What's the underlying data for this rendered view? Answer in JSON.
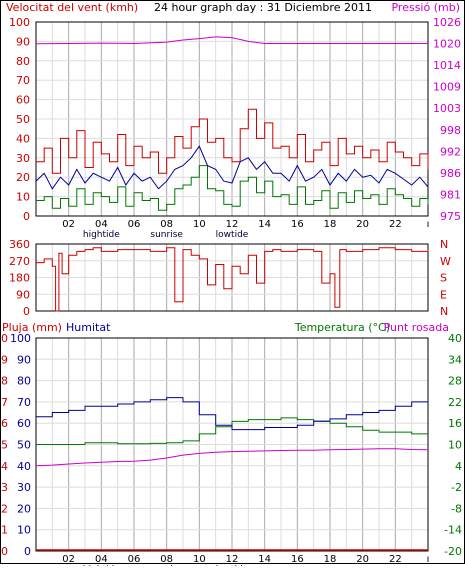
{
  "colors": {
    "wind_avg": "#000099",
    "wind_gust": "#cc0000",
    "wind_dir": "#cc0000",
    "pressure": "#cc00cc",
    "rain": "#cc0000",
    "humidity": "#000099",
    "temperature": "#007700",
    "dewpoint": "#cc00cc",
    "grid_major": "#aaaaaa",
    "grid_minor": "#dddddd"
  },
  "chart_data": [
    {
      "type": "line",
      "title": "24 hour graph day : 31 Diciembre 2011",
      "left_axis_label": "Velocitat del vent (kmh)",
      "right_axis_label": "Pressió (mb)",
      "x_ticks": [
        "02",
        "04",
        "06",
        "08",
        "10",
        "12",
        "14",
        "16",
        "18",
        "20",
        "22"
      ],
      "x_markers": [
        "hightide",
        "sunrise",
        "lowtide"
      ],
      "ylim_left": [
        0,
        100
      ],
      "ylim_right": [
        975,
        1031
      ],
      "left_ticks": [
        "100",
        "90",
        "80",
        "70",
        "60",
        "50",
        "40",
        "30",
        "20",
        "10",
        "0"
      ],
      "right_ticks": [
        "1026",
        "1020",
        "1014",
        "1009",
        "1003",
        "998",
        "992",
        "986",
        "981",
        "975"
      ],
      "series": [
        {
          "key": "gust",
          "x": [
            0,
            0.5,
            1,
            1.5,
            2,
            2.5,
            3,
            3.5,
            4,
            4.5,
            5,
            5.5,
            6,
            6.5,
            7,
            7.5,
            8,
            8.5,
            9,
            9.5,
            10,
            10.5,
            11,
            11.5,
            12,
            12.5,
            13,
            13.5,
            14,
            14.5,
            15,
            15.5,
            16,
            16.5,
            17,
            17.5,
            18,
            18.5,
            19,
            19.5,
            20,
            20.5,
            21,
            21.5,
            22,
            22.5,
            23,
            23.5,
            24
          ],
          "values": [
            28,
            35,
            22,
            40,
            30,
            44,
            25,
            38,
            32,
            28,
            42,
            26,
            36,
            30,
            33,
            22,
            30,
            41,
            35,
            46,
            50,
            38,
            40,
            30,
            28,
            45,
            55,
            40,
            48,
            35,
            36,
            30,
            42,
            28,
            34,
            38,
            26,
            40,
            32,
            36,
            30,
            34,
            28,
            38,
            33,
            30,
            26,
            32,
            24
          ]
        },
        {
          "key": "avg",
          "x": [
            0,
            0.5,
            1,
            1.5,
            2,
            2.5,
            3,
            3.5,
            4,
            4.5,
            5,
            5.5,
            6,
            6.5,
            7,
            7.5,
            8,
            8.5,
            9,
            9.5,
            10,
            10.5,
            11,
            11.5,
            12,
            12.5,
            13,
            13.5,
            14,
            14.5,
            15,
            15.5,
            16,
            16.5,
            17,
            17.5,
            18,
            18.5,
            19,
            19.5,
            20,
            20.5,
            21,
            21.5,
            22,
            22.5,
            23,
            23.5,
            24
          ],
          "values": [
            18,
            22,
            14,
            20,
            16,
            24,
            17,
            22,
            20,
            18,
            25,
            16,
            22,
            18,
            20,
            14,
            18,
            24,
            26,
            30,
            36,
            26,
            24,
            18,
            17,
            28,
            30,
            24,
            28,
            22,
            22,
            18,
            26,
            18,
            20,
            24,
            16,
            22,
            18,
            24,
            20,
            21,
            17,
            24,
            22,
            19,
            16,
            20,
            15
          ]
        },
        {
          "key": "low",
          "x": [
            0,
            0.5,
            1,
            1.5,
            2,
            2.5,
            3,
            3.5,
            4,
            4.5,
            5,
            5.5,
            6,
            6.5,
            7,
            7.5,
            8,
            8.5,
            9,
            9.5,
            10,
            10.5,
            11,
            11.5,
            12,
            12.5,
            13,
            13.5,
            14,
            14.5,
            15,
            15.5,
            16,
            16.5,
            17,
            17.5,
            18,
            18.5,
            19,
            19.5,
            20,
            20.5,
            21,
            21.5,
            22,
            22.5,
            23,
            23.5,
            24
          ],
          "values": [
            8,
            10,
            4,
            9,
            5,
            14,
            6,
            12,
            10,
            7,
            15,
            5,
            12,
            8,
            9,
            3,
            6,
            14,
            16,
            20,
            26,
            14,
            13,
            6,
            5,
            18,
            20,
            12,
            18,
            10,
            11,
            6,
            15,
            6,
            8,
            13,
            4,
            12,
            7,
            13,
            9,
            11,
            6,
            14,
            11,
            9,
            5,
            9,
            6
          ]
        },
        {
          "key": "pressure",
          "x": [
            0,
            2,
            4,
            6,
            8,
            9,
            10,
            11,
            12,
            13,
            14,
            16,
            18,
            20,
            22,
            24
          ],
          "values": [
            1024.7,
            1024.8,
            1024.9,
            1024.8,
            1025.2,
            1025.8,
            1026.2,
            1026.7,
            1026.5,
            1025.4,
            1024.8,
            1024.8,
            1024.8,
            1024.8,
            1024.8,
            1024.8
          ]
        }
      ]
    },
    {
      "type": "line",
      "title": "",
      "ylim": [
        0,
        360
      ],
      "left_ticks": [
        "360",
        "270",
        "180",
        "90",
        "0"
      ],
      "right_ticks": [
        "N",
        "W",
        "S",
        "E",
        "N"
      ],
      "series": [
        {
          "key": "direction",
          "x": [
            0,
            0.5,
            1,
            1.2,
            1.4,
            1.6,
            2,
            2.5,
            3,
            3.5,
            4,
            5,
            6,
            7,
            8,
            8.5,
            9,
            9.5,
            10,
            10.5,
            11,
            11.5,
            12,
            12.5,
            13,
            13.5,
            14,
            14.5,
            15,
            16,
            17,
            17.5,
            18,
            18.3,
            18.6,
            19,
            20,
            21,
            22,
            23,
            24
          ],
          "values": [
            260,
            280,
            240,
            0,
            310,
            200,
            300,
            320,
            330,
            340,
            320,
            330,
            330,
            320,
            340,
            50,
            330,
            300,
            280,
            140,
            250,
            120,
            240,
            200,
            300,
            150,
            320,
            330,
            320,
            330,
            320,
            150,
            200,
            20,
            330,
            320,
            330,
            340,
            330,
            320,
            330
          ]
        }
      ]
    },
    {
      "type": "line",
      "title": "",
      "left_axis_label": "Pluja (mm)",
      "humidity_label": "Humitat",
      "temperature_label": "Temperatura (°C)",
      "dewpoint_label": "Punt rosada",
      "ylim_left": [
        0,
        100
      ],
      "ylim_right": [
        -20,
        40
      ],
      "left_rain_ticks": [
        "10",
        "9",
        "8",
        "7",
        "6",
        "5",
        "4",
        "3",
        "2",
        "1",
        "0"
      ],
      "left_hum_ticks": [
        "100",
        "90",
        "80",
        "70",
        "60",
        "50",
        "40",
        "30",
        "20",
        "10",
        "0"
      ],
      "right_ticks": [
        "40",
        "34",
        "28",
        "22",
        "16",
        "10",
        "4",
        "-2",
        "-8",
        "-14",
        "-20"
      ],
      "series": [
        {
          "key": "humidity",
          "x": [
            0,
            1,
            2,
            3,
            4,
            5,
            6,
            7,
            8,
            9,
            10,
            11,
            12,
            13,
            14,
            15,
            16,
            17,
            18,
            19,
            20,
            21,
            22,
            23,
            24
          ],
          "values": [
            63,
            65,
            66,
            68,
            68,
            69,
            70,
            71,
            72,
            70,
            64,
            59,
            57,
            57,
            58,
            58,
            59,
            61,
            62,
            64,
            65,
            66,
            68,
            70,
            71
          ]
        },
        {
          "key": "temperature",
          "x": [
            0,
            1,
            2,
            3,
            4,
            5,
            6,
            7,
            8,
            9,
            10,
            11,
            12,
            13,
            14,
            15,
            16,
            17,
            18,
            19,
            20,
            21,
            22,
            23,
            24
          ],
          "values": [
            10,
            10,
            10,
            10.5,
            10.5,
            10.2,
            10.2,
            10.3,
            10.5,
            11,
            13,
            15,
            16.5,
            17,
            17,
            17.5,
            17,
            16.5,
            16,
            15,
            14,
            13.5,
            13.5,
            13,
            13
          ]
        },
        {
          "key": "dewpoint",
          "x": [
            0,
            1,
            2,
            3,
            4,
            5,
            6,
            7,
            8,
            9,
            10,
            11,
            12,
            13,
            14,
            15,
            16,
            17,
            18,
            19,
            20,
            21,
            22,
            23,
            24
          ],
          "values": [
            4,
            4.2,
            4.5,
            4.8,
            5,
            5.2,
            5.3,
            5.6,
            6.2,
            7,
            7.5,
            7.8,
            8,
            8.1,
            8.2,
            8.3,
            8.4,
            8.4,
            8.5,
            8.6,
            8.7,
            8.8,
            8.8,
            8.6,
            8.5
          ]
        },
        {
          "key": "rain",
          "x": [
            0,
            24
          ],
          "values": [
            0,
            0
          ]
        }
      ]
    }
  ]
}
